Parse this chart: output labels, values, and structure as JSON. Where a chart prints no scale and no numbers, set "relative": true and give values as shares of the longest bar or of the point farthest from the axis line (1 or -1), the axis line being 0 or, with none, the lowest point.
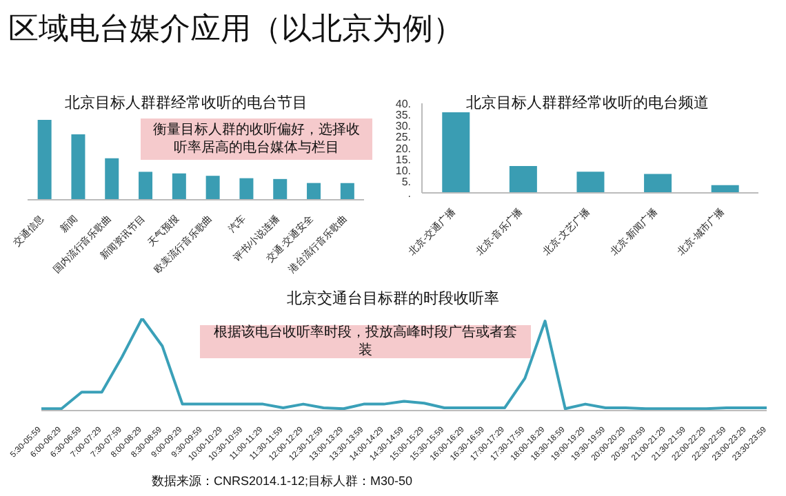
{
  "chart_data": [
    {
      "type": "bar",
      "title": "北京目标人群群经常收听的电台节目",
      "relative": true,
      "color": "#3a9db3",
      "categories": [
        "交通信息",
        "新闻",
        "国内流行音乐歌曲",
        "新闻资讯节目",
        "天气预报",
        "欧美流行音乐歌曲",
        "汽车",
        "评书/小说连播",
        "交通·交通安全",
        "港台流行音乐歌曲"
      ],
      "values": [
        1,
        0.82,
        0.52,
        0.35,
        0.33,
        0.3,
        0.27,
        0.26,
        0.21,
        0.21
      ],
      "annotations": [
        "衡量目标人群的收听偏好，选择收听率居高的电台媒体与栏目"
      ]
    },
    {
      "type": "bar",
      "title": "北京目标人群群经常收听的电台频道",
      "color": "#3a9db3",
      "categories": [
        "北京-交通广播",
        "北京-音乐广播",
        "北京-文艺广播",
        "北京-新闻广播",
        "北京-城市广播"
      ],
      "values": [
        36,
        12,
        9.5,
        8.5,
        3.5
      ],
      "ylim": [
        0,
        40
      ],
      "yticks": [
        {
          "value": 0,
          "label": "."
        },
        {
          "value": 5,
          "label": "5."
        },
        {
          "value": 10,
          "label": "10."
        },
        {
          "value": 15,
          "label": "15."
        },
        {
          "value": 20,
          "label": "20."
        },
        {
          "value": 25,
          "label": "25."
        },
        {
          "value": 30,
          "label": "30."
        },
        {
          "value": 35,
          "label": "35."
        },
        {
          "value": 40,
          "label": "40."
        }
      ]
    },
    {
      "type": "line",
      "title": "北京交通台目标群的时段收听率",
      "relative": true,
      "color": "#3aa0b8",
      "marker": "none",
      "categories": [
        "5:30-05:59",
        "6:00-06:29",
        "6:30-06:59",
        "7:00-07:29",
        "7:30-07:59",
        "8:00-08:29",
        "8:30-08:59",
        "9:00-09:29",
        "9:30-09:59",
        "10:00-10:29",
        "10:30-10:59",
        "11:00-11:29",
        "11:30-11:59",
        "12:00-12:29",
        "12:30-12:59",
        "13:00-13:29",
        "13:30-13:59",
        "14:00-14:29",
        "14:30-14:59",
        "15:00-15:29",
        "15:30-15:59",
        "16:00-16:29",
        "16:30-16:59",
        "17:00-17:29",
        "17:30-17:59",
        "18:00-18:29",
        "18:30-18:59",
        "19:00-19:29",
        "19:30-19:59",
        "20:00-20:29",
        "20:30-20:59",
        "21:00-21:29",
        "21:30-21:59",
        "22:00-22:29",
        "22:30-22:59",
        "23:00-23:29",
        "23:30-23:59"
      ],
      "values": [
        0.02,
        0.02,
        0.2,
        0.2,
        0.58,
        1,
        0.7,
        0.07,
        0.07,
        0.07,
        0.07,
        0.07,
        0.03,
        0.07,
        0.03,
        0.02,
        0.07,
        0.07,
        0.1,
        0.08,
        0.03,
        0.03,
        0.03,
        0.03,
        0.35,
        0.97,
        0.02,
        0.07,
        0.03,
        0.03,
        0.02,
        0.02,
        0.02,
        0.02,
        0.03,
        0.03,
        0.03
      ],
      "annotations": [
        "根据该电台收听率时段，投放高峰时段广告或者套装"
      ]
    },
    {
      "type": "other",
      "title": "区域电台媒介应用（以北京为例）",
      "annotations": [
        "数据来源：CNRS2014.1-12;目标人群：M30-50"
      ]
    }
  ]
}
